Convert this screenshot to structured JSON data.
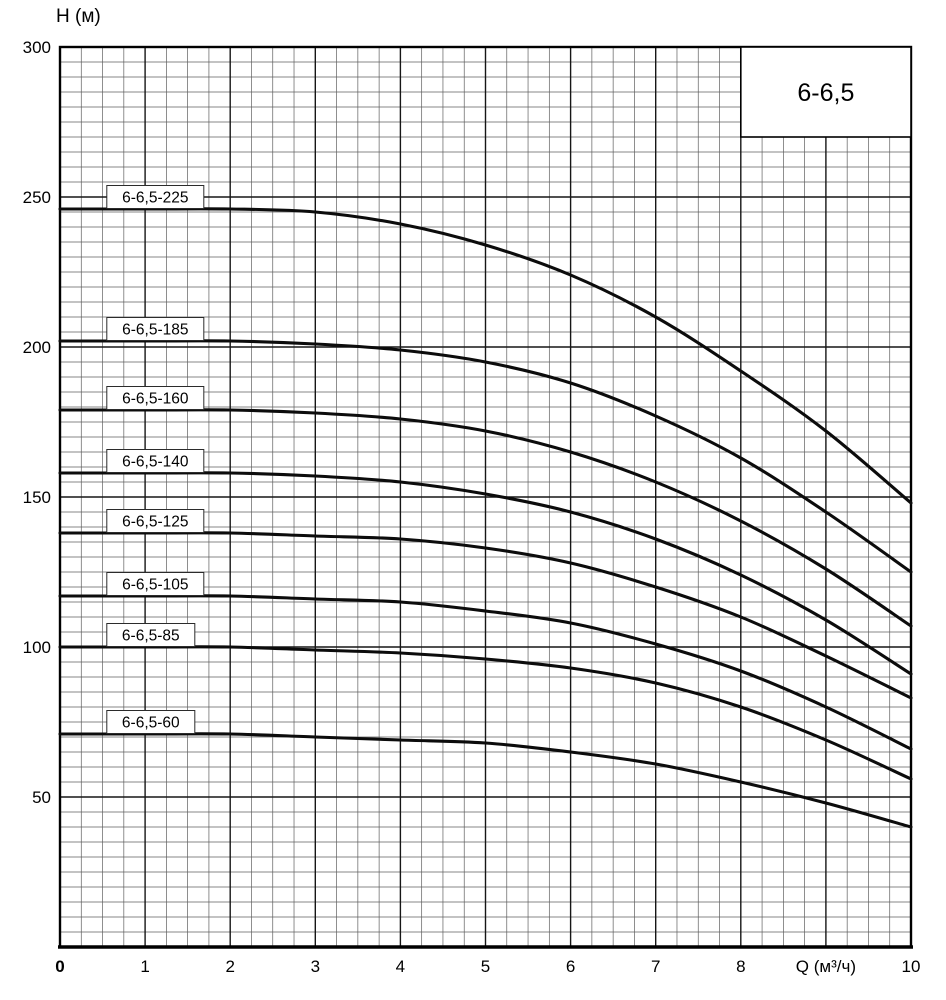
{
  "chart_data": {
    "type": "line",
    "title": "6-6,5",
    "xlabel": "Q (м³/ч)",
    "ylabel": "H (м)",
    "xlim": [
      0,
      10
    ],
    "ylim": [
      0,
      300
    ],
    "grid": {
      "x_minor_step": 0.25,
      "x_major_step": 1,
      "y_minor_step": 5,
      "y_major_step": 50
    },
    "legend_position": "inline-curve-labels",
    "x": [
      0,
      1,
      2,
      3,
      4,
      5,
      6,
      7,
      8,
      9,
      10
    ],
    "series": [
      {
        "name": "6-6,5-225",
        "values": [
          246,
          246,
          246,
          245,
          241,
          234,
          224,
          210,
          192,
          172,
          148
        ]
      },
      {
        "name": "6-6,5-185",
        "values": [
          202,
          202,
          202,
          201,
          199,
          195,
          188,
          177,
          163,
          145,
          125
        ]
      },
      {
        "name": "6-6,5-160",
        "values": [
          179,
          179,
          179,
          178,
          176,
          172,
          165,
          155,
          142,
          126,
          107
        ]
      },
      {
        "name": "6-6,5-140",
        "values": [
          158,
          158,
          158,
          157,
          155,
          151,
          145,
          136,
          124,
          109,
          91
        ]
      },
      {
        "name": "6-6,5-125",
        "values": [
          138,
          138,
          138,
          137,
          136,
          133,
          128,
          120,
          110,
          97,
          83
        ]
      },
      {
        "name": "6-6,5-105",
        "values": [
          117,
          117,
          117,
          116,
          115,
          112,
          108,
          101,
          92,
          80,
          66
        ]
      },
      {
        "name": "6-6,5-85",
        "values": [
          100,
          100,
          100,
          99,
          98,
          96,
          93,
          88,
          80,
          69,
          56
        ]
      },
      {
        "name": "6-6,5-60",
        "values": [
          71,
          71,
          71,
          70,
          69,
          68,
          65,
          61,
          55,
          48,
          40
        ]
      }
    ],
    "x_ticks": [
      {
        "pos": 0,
        "label": "0",
        "bold": true
      },
      {
        "pos": 1,
        "label": "1"
      },
      {
        "pos": 2,
        "label": "2"
      },
      {
        "pos": 3,
        "label": "3"
      },
      {
        "pos": 4,
        "label": "4"
      },
      {
        "pos": 5,
        "label": "5"
      },
      {
        "pos": 6,
        "label": "6"
      },
      {
        "pos": 7,
        "label": "7"
      },
      {
        "pos": 8,
        "label": "8"
      },
      {
        "pos": 9,
        "label": "Q (м³/ч)"
      },
      {
        "pos": 10,
        "label": "10"
      }
    ],
    "y_ticks": [
      {
        "pos": 300,
        "label": "300"
      },
      {
        "pos": 250,
        "label": "250"
      },
      {
        "pos": 200,
        "label": "200"
      },
      {
        "pos": 150,
        "label": "150"
      },
      {
        "pos": 100,
        "label": "100"
      },
      {
        "pos": 50,
        "label": "50"
      }
    ],
    "title_box": {
      "label": "6-6,5"
    }
  },
  "colors": {
    "curve": "#0c0c0c",
    "grid_minor": "#5f5f5f",
    "grid_major": "#161616",
    "background": "#ffffff"
  }
}
